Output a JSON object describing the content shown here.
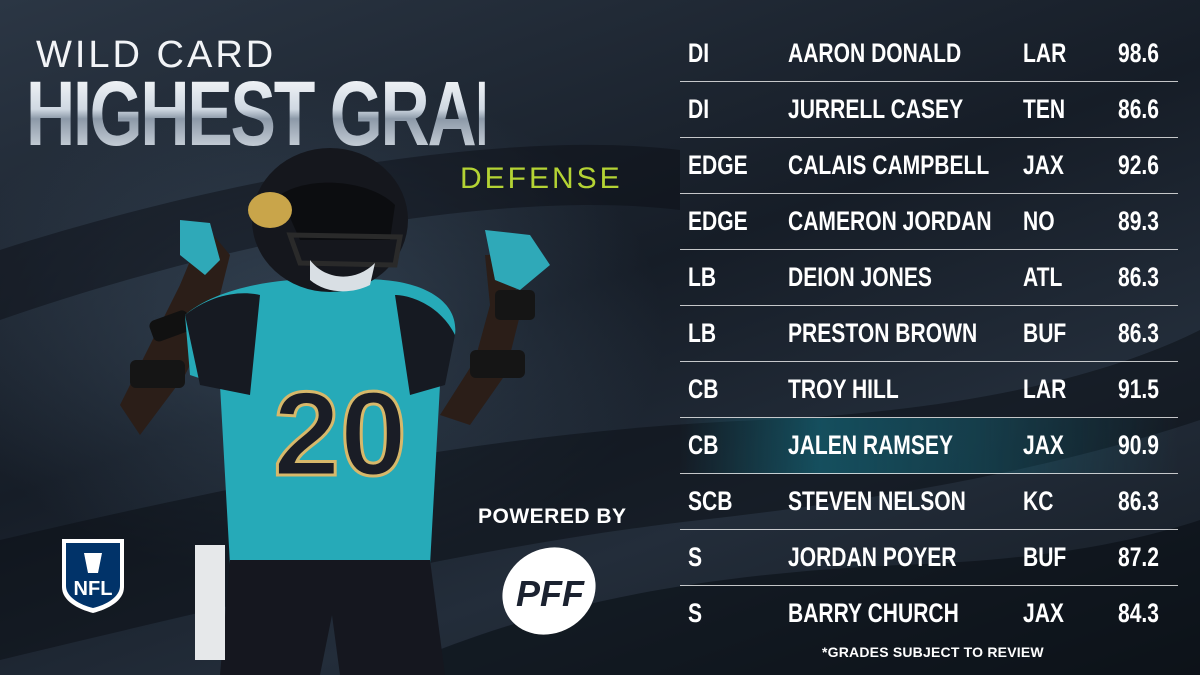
{
  "header": {
    "eyebrow": "WILD CARD",
    "title": "HIGHEST GRADED",
    "subtitle": "DEFENSE"
  },
  "player": {
    "jersey_number": "20"
  },
  "branding": {
    "league_logo_text": "NFL",
    "powered_by": "POWERED BY",
    "partner_logo_text": "PFF"
  },
  "grades": [
    {
      "position": "DI",
      "name": "AARON DONALD",
      "team": "LAR",
      "grade": "98.6"
    },
    {
      "position": "DI",
      "name": "JURRELL CASEY",
      "team": "TEN",
      "grade": "86.6"
    },
    {
      "position": "EDGE",
      "name": "CALAIS CAMPBELL",
      "team": "JAX",
      "grade": "92.6"
    },
    {
      "position": "EDGE",
      "name": "CAMERON JORDAN",
      "team": "NO",
      "grade": "89.3"
    },
    {
      "position": "LB",
      "name": "DEION JONES",
      "team": "ATL",
      "grade": "86.3"
    },
    {
      "position": "LB",
      "name": "PRESTON BROWN",
      "team": "BUF",
      "grade": "86.3"
    },
    {
      "position": "CB",
      "name": "TROY HILL",
      "team": "LAR",
      "grade": "91.5"
    },
    {
      "position": "CB",
      "name": "JALEN RAMSEY",
      "team": "JAX",
      "grade": "90.9"
    },
    {
      "position": "SCB",
      "name": "STEVEN NELSON",
      "team": "KC",
      "grade": "86.3"
    },
    {
      "position": "S",
      "name": "JORDAN POYER",
      "team": "BUF",
      "grade": "87.2"
    },
    {
      "position": "S",
      "name": "BARRY CHURCH",
      "team": "JAX",
      "grade": "84.3"
    }
  ],
  "footnote": "*GRADES SUBJECT TO REVIEW",
  "colors": {
    "accent_green": "#b4d334",
    "teal": "#1f9bb0",
    "highlight": "#14788c"
  }
}
